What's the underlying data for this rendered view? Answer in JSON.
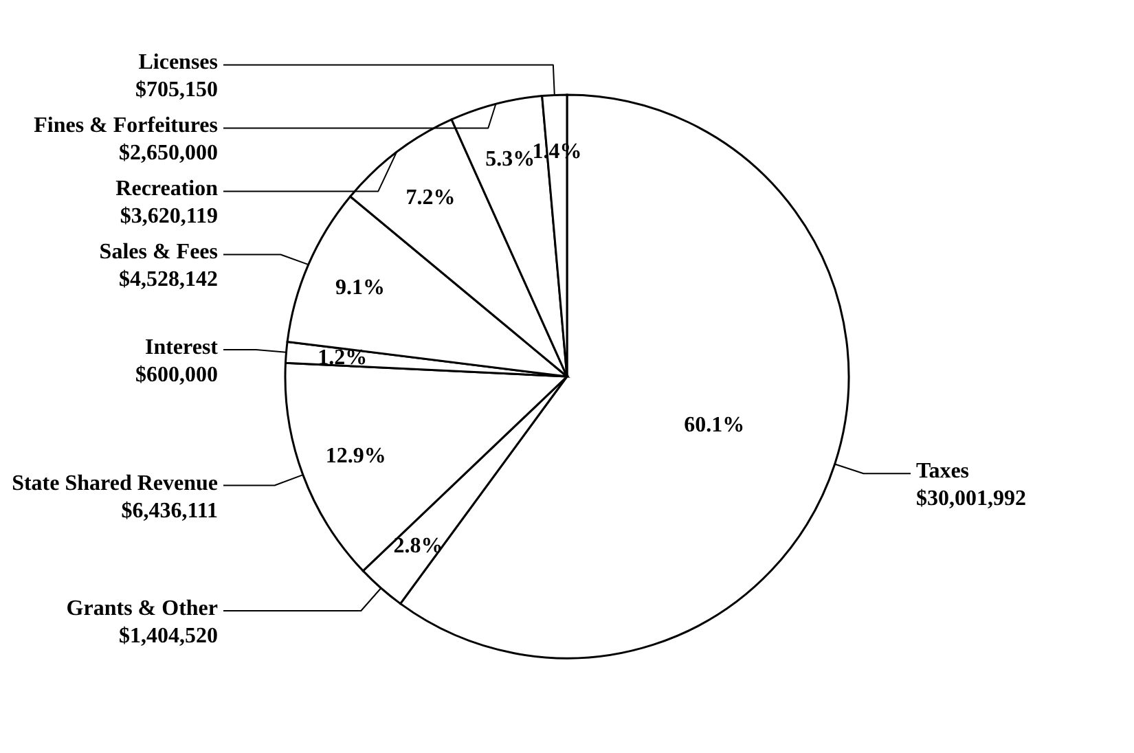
{
  "chart_data": {
    "type": "pie",
    "categories": [
      "Taxes",
      "Grants & Other",
      "State Shared Revenue",
      "Interest",
      "Sales & Fees",
      "Recreation",
      "Fines & Forfeitures",
      "Licenses"
    ],
    "values": [
      30001992,
      1404520,
      6436111,
      600000,
      4528142,
      3620119,
      2650000,
      705150
    ],
    "value_labels": [
      "$30,001,992",
      "$1,404,520",
      "$6,436,111",
      "$600,000",
      "$4,528,142",
      "$3,620,119",
      "$2,650,000",
      "$705,150"
    ],
    "colors": [
      "#ffffff",
      "#ffffff",
      "#ffffff",
      "#ffffff",
      "#ffffff",
      "#ffffff",
      "#ffffff",
      "#ffffff"
    ],
    "annotations": [
      "60.1%",
      "2.8%",
      "12.9%",
      "1.2%",
      "9.1%",
      "7.2%",
      "5.3%",
      "1.4%"
    ]
  }
}
